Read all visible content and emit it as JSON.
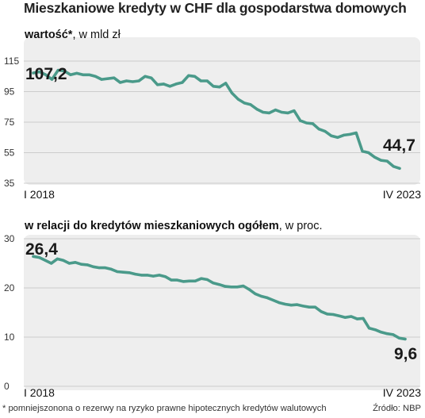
{
  "title": "Mieszkaniowe kredyty w CHF dla gospodarstwa domowych",
  "footnote": "* pomniejszonona o rezerwy na ryzyko prawne hipotecznych kredytów walutowych",
  "source": "Źródło: NBP",
  "colors": {
    "line": "#4a9a8a",
    "panel": "#eeeeee",
    "grid": "#cccccc"
  },
  "chart_data": [
    {
      "type": "line",
      "subtitle_bold": "wartość*",
      "subtitle_rest": ", w mld zł",
      "x_start_label": "I 2018",
      "x_end_label": "IV 2023",
      "ylim": [
        35,
        115
      ],
      "yticks": [
        35,
        55,
        75,
        95,
        115
      ],
      "grid": true,
      "first_label": "107,2",
      "last_label": "44,7",
      "values": [
        107.2,
        108,
        106,
        103,
        109,
        108.5,
        106,
        107,
        106,
        106,
        105,
        103,
        103.5,
        104,
        101,
        102,
        101.5,
        102,
        105,
        104,
        99.5,
        100,
        98.5,
        100,
        101,
        105.5,
        105,
        102,
        102,
        98.5,
        98,
        100.5,
        94,
        90,
        87.5,
        86.5,
        83.5,
        81.5,
        81,
        83,
        81.5,
        81,
        82.5,
        76,
        74.5,
        74,
        70.5,
        69,
        66,
        65,
        66.5,
        67,
        68,
        56,
        55,
        52,
        50,
        49.5,
        46,
        44.7
      ]
    },
    {
      "type": "line",
      "subtitle_bold": "w relacji do kredytów mieszkaniowych ogółem",
      "subtitle_rest": ", w proc.",
      "x_start_label": "I 2018",
      "x_end_label": "IV 2023",
      "ylim": [
        0,
        30
      ],
      "yticks": [
        0,
        10,
        20,
        30
      ],
      "grid": true,
      "first_label": "26,4",
      "last_label": "9,6",
      "values": [
        26.4,
        26.2,
        25.6,
        25,
        25.9,
        25.6,
        25,
        25.2,
        24.8,
        24.7,
        24.3,
        24.1,
        24.1,
        23.8,
        23.3,
        23.2,
        23.1,
        22.8,
        22.6,
        22.6,
        22.4,
        22.6,
        22.3,
        21.6,
        21.6,
        21.3,
        21.4,
        21.4,
        21.9,
        21.7,
        21,
        20.7,
        20.3,
        20.2,
        20.2,
        20.4,
        19.7,
        18.8,
        18.3,
        18,
        17.5,
        17,
        16.7,
        16.5,
        16.6,
        16.3,
        16.1,
        16.1,
        15.2,
        14.7,
        14.6,
        14.3,
        14,
        14.2,
        13.7,
        13.8,
        11.8,
        11.5,
        11,
        10.7,
        10.5,
        9.8,
        9.6
      ]
    }
  ]
}
